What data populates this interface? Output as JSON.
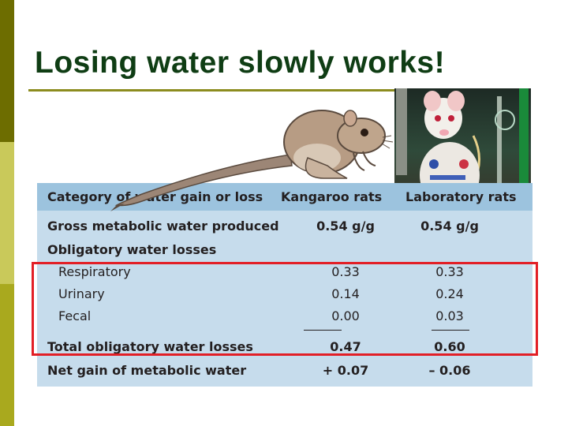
{
  "slide": {
    "title": "Losing water slowly works!"
  },
  "photo": {
    "icon": "laboratory-rat-photo"
  },
  "illustration": {
    "icon": "kangaroo-rat-illustration"
  },
  "table": {
    "headers": [
      "Category of water gain or loss",
      "Kangaroo rats",
      "Laboratory rats"
    ],
    "rows": [
      {
        "label": "Gross metabolic water produced",
        "kangaroo": "0.54 g/g",
        "lab": "0.54 g/g"
      },
      {
        "label": "Obligatory water losses",
        "kangaroo": "",
        "lab": ""
      },
      {
        "label": "Respiratory",
        "kangaroo": "0.33",
        "lab": "0.33"
      },
      {
        "label": "Urinary",
        "kangaroo": "0.14",
        "lab": "0.24"
      },
      {
        "label": "Fecal",
        "kangaroo": "0.00",
        "lab": "0.03"
      },
      {
        "label": "Total obligatory water losses",
        "kangaroo": "0.47",
        "lab": "0.60"
      },
      {
        "label": "Net gain of metabolic water",
        "kangaroo": "+ 0.07",
        "lab": "– 0.06"
      }
    ]
  },
  "colors": {
    "title": "#0f3d14",
    "table_header_bg": "#9cc3de",
    "table_body_bg": "#c6dcec",
    "highlight_border": "#e21f26"
  }
}
